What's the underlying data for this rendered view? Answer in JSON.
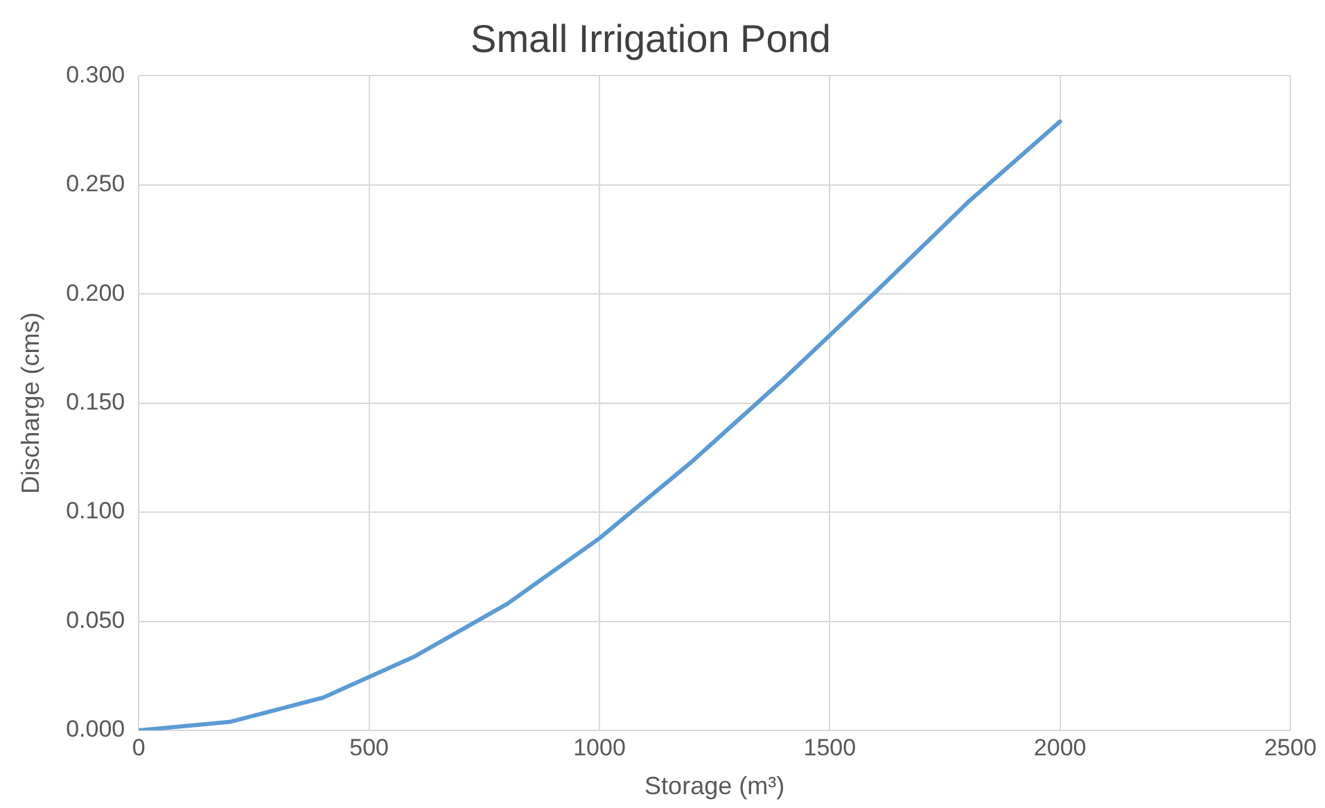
{
  "chart_data": {
    "type": "line",
    "title": "Small Irrigation Pond",
    "xlabel": "Storage (m³)",
    "ylabel": "Discharge (cms)",
    "x": [
      0,
      200,
      400,
      600,
      800,
      1000,
      1200,
      1400,
      1600,
      1800,
      2000
    ],
    "series": [
      {
        "color": "#5b9bd5",
        "values": [
          0,
          0.004,
          0.015,
          0.034,
          0.058,
          0.088,
          0.123,
          0.161,
          0.201,
          0.242,
          0.279
        ]
      }
    ],
    "xlim": [
      0,
      2500
    ],
    "xticks": [
      0,
      500,
      1000,
      1500,
      2000,
      2500
    ],
    "ylim": [
      0,
      0.3
    ],
    "yticks": [
      {
        "value": 0,
        "label": "0.000"
      },
      {
        "value": 0.05,
        "label": "0.050"
      },
      {
        "value": 0.1,
        "label": "0.100"
      },
      {
        "value": 0.15,
        "label": "0.150"
      },
      {
        "value": 0.2,
        "label": "0.200"
      },
      {
        "value": 0.25,
        "label": "0.250"
      },
      {
        "value": 0.3,
        "label": "0.300"
      }
    ],
    "grid": true,
    "legend": false,
    "marker": "none",
    "line_style": "solid"
  }
}
